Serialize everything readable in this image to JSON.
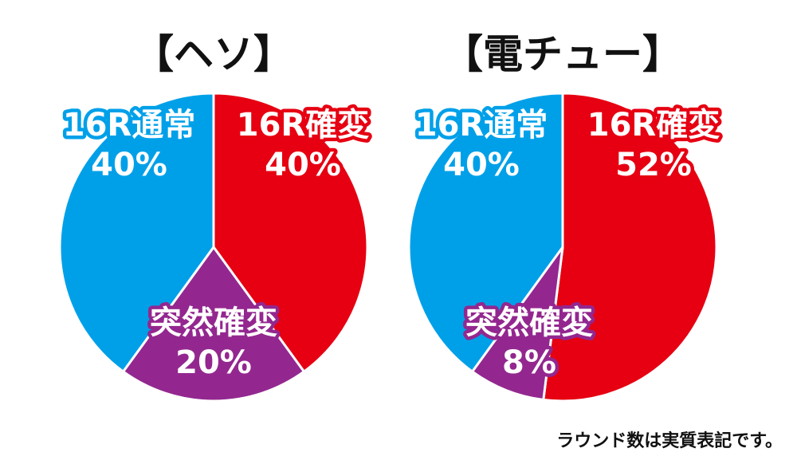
{
  "chart_data": [
    {
      "type": "pie",
      "title": "【ヘソ】",
      "start": "12-o'clock",
      "direction": "clockwise",
      "slices": [
        {
          "name": "16R確変",
          "value": 40,
          "label": "40%",
          "color": "#e60012"
        },
        {
          "name": "突然確変",
          "value": 20,
          "label": "20%",
          "color": "#93278f"
        },
        {
          "name": "16R通常",
          "value": 40,
          "label": "40%",
          "color": "#00a0e9"
        }
      ]
    },
    {
      "type": "pie",
      "title": "【電チュー】",
      "start": "12-o'clock",
      "direction": "clockwise",
      "slices": [
        {
          "name": "16R確変",
          "value": 52,
          "label": "52%",
          "color": "#e60012"
        },
        {
          "name": "突然確変",
          "value": 8,
          "label": "8%",
          "color": "#93278f"
        },
        {
          "name": "16R通常",
          "value": 40,
          "label": "40%",
          "color": "#00a0e9"
        }
      ]
    }
  ],
  "footnote": "ラウンド数は実質表記です。"
}
